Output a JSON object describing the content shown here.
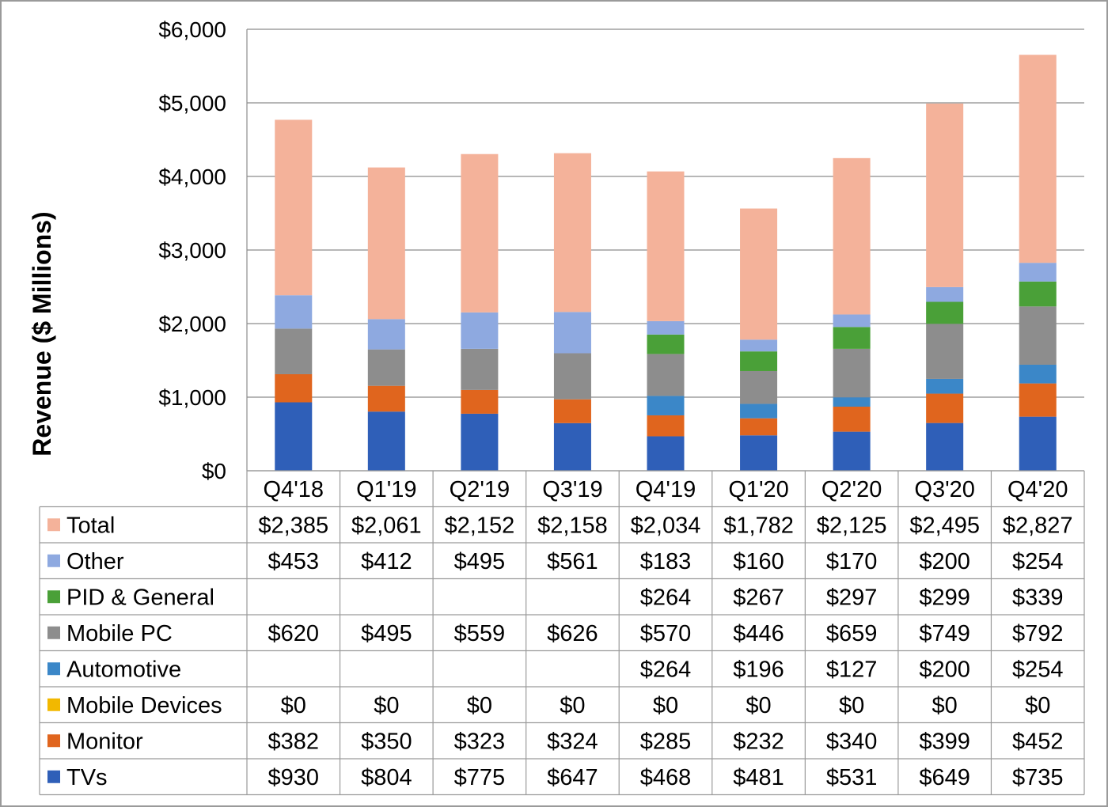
{
  "chart_data": {
    "type": "bar",
    "stacked": true,
    "title": "",
    "xlabel": "",
    "ylabel": "Revenue ($ Millions)",
    "ylim": [
      0,
      6000
    ],
    "yticks": [
      "$0",
      "$1,000",
      "$2,000",
      "$3,000",
      "$4,000",
      "$5,000",
      "$6,000"
    ],
    "ytick_values": [
      0,
      1000,
      2000,
      3000,
      4000,
      5000,
      6000
    ],
    "grid": true,
    "legend": "data-table-left",
    "categories": [
      "Q4'18",
      "Q1'19",
      "Q2'19",
      "Q3'19",
      "Q4'19",
      "Q1'20",
      "Q2'20",
      "Q3'20",
      "Q4'20"
    ],
    "series": [
      {
        "name": "Total",
        "color": "#f4b29a",
        "values": [
          2385,
          2061,
          2152,
          2158,
          2034,
          1782,
          2125,
          2495,
          2827
        ],
        "labels": [
          "$2,385",
          "$2,061",
          "$2,152",
          "$2,158",
          "$2,034",
          "$1,782",
          "$2,125",
          "$2,495",
          "$2,827"
        ]
      },
      {
        "name": "Other",
        "color": "#8ea9e0",
        "values": [
          453,
          412,
          495,
          561,
          183,
          160,
          170,
          200,
          254
        ],
        "labels": [
          "$453",
          "$412",
          "$495",
          "$561",
          "$183",
          "$160",
          "$170",
          "$200",
          "$254"
        ]
      },
      {
        "name": "PID & General",
        "color": "#4aa038",
        "values": [
          null,
          null,
          null,
          null,
          264,
          267,
          297,
          299,
          339
        ],
        "labels": [
          "",
          "",
          "",
          "",
          "$264",
          "$267",
          "$297",
          "$299",
          "$339"
        ]
      },
      {
        "name": "Mobile PC",
        "color": "#8d8d8d",
        "values": [
          620,
          495,
          559,
          626,
          570,
          446,
          659,
          749,
          792
        ],
        "labels": [
          "$620",
          "$495",
          "$559",
          "$626",
          "$570",
          "$446",
          "$659",
          "$749",
          "$792"
        ]
      },
      {
        "name": "Automotive",
        "color": "#3b87c8",
        "values": [
          null,
          null,
          null,
          null,
          264,
          196,
          127,
          200,
          254
        ],
        "labels": [
          "",
          "",
          "",
          "",
          "$264",
          "$196",
          "$127",
          "$200",
          "$254"
        ]
      },
      {
        "name": "Mobile Devices",
        "color": "#f2b800",
        "values": [
          0,
          0,
          0,
          0,
          0,
          0,
          0,
          0,
          0
        ],
        "labels": [
          "$0",
          "$0",
          "$0",
          "$0",
          "$0",
          "$0",
          "$0",
          "$0",
          "$0"
        ]
      },
      {
        "name": "Monitor",
        "color": "#e0651e",
        "values": [
          382,
          350,
          323,
          324,
          285,
          232,
          340,
          399,
          452
        ],
        "labels": [
          "$382",
          "$350",
          "$323",
          "$324",
          "$285",
          "$232",
          "$340",
          "$399",
          "$452"
        ]
      },
      {
        "name": "TVs",
        "color": "#2f5fb8",
        "values": [
          930,
          804,
          775,
          647,
          468,
          481,
          531,
          649,
          735
        ],
        "labels": [
          "$930",
          "$804",
          "$775",
          "$647",
          "$468",
          "$481",
          "$531",
          "$649",
          "$735"
        ]
      }
    ]
  }
}
